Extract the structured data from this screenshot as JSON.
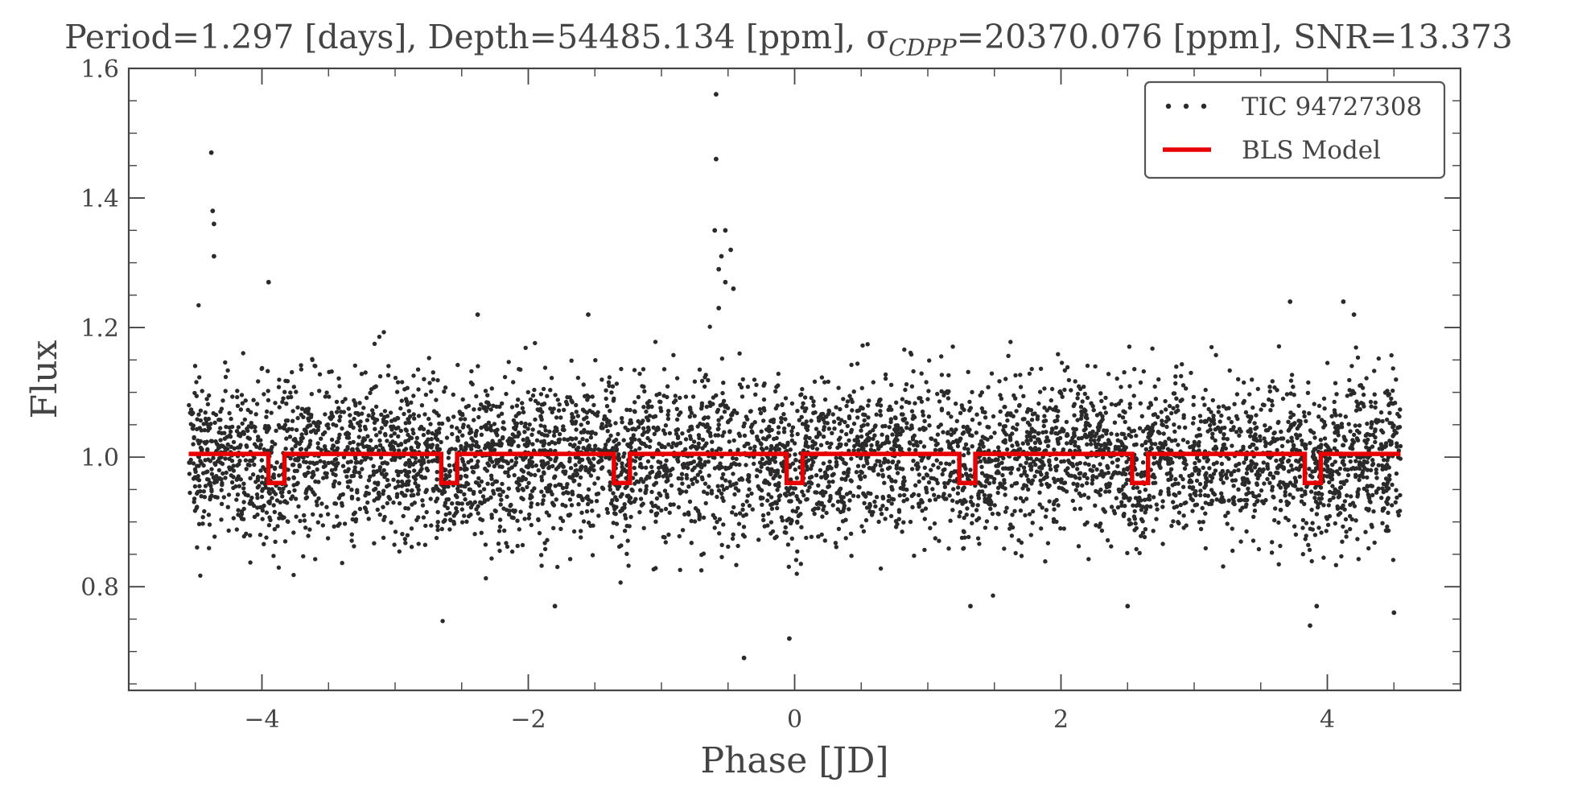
{
  "chart_data": {
    "type": "scatter",
    "title": "Period=1.297 [days],   Depth=54485.134 [ppm],   σ",
    "title_subscript": "CDPP",
    "title_rest": "=20370.076 [ppm],   SNR=13.373",
    "xlabel": "Phase [JD]",
    "ylabel": "Flux",
    "xlim": [
      -5.0,
      5.0
    ],
    "ylim": [
      0.64,
      1.6
    ],
    "x_ticks": [
      -4,
      -2,
      0,
      2,
      4
    ],
    "x_tick_labels": [
      "−4",
      "−2",
      "0",
      "2",
      "4"
    ],
    "y_ticks": [
      0.8,
      1.0,
      1.2,
      1.4,
      1.6
    ],
    "y_tick_labels": [
      "0.8",
      "1.0",
      "1.2",
      "1.4",
      "1.6"
    ],
    "grid": false,
    "legend_position": "top-right",
    "series": [
      {
        "name": "TIC 94727308",
        "kind": "scatter",
        "color": "#2a2a2a",
        "x_range": [
          -4.55,
          4.55
        ],
        "baseline_flux": 1.0,
        "flux_scatter_sigma": 0.06,
        "approx_point_count": 5500,
        "outliers": [
          {
            "x": -4.38,
            "y": 1.47
          },
          {
            "x": -4.37,
            "y": 1.38
          },
          {
            "x": -4.36,
            "y": 1.36
          },
          {
            "x": -4.36,
            "y": 1.31
          },
          {
            "x": -3.95,
            "y": 1.27
          },
          {
            "x": -0.59,
            "y": 1.56
          },
          {
            "x": -0.59,
            "y": 1.46
          },
          {
            "x": -0.6,
            "y": 1.35
          },
          {
            "x": -0.52,
            "y": 1.35
          },
          {
            "x": -0.55,
            "y": 1.31
          },
          {
            "x": -0.57,
            "y": 1.29
          },
          {
            "x": -0.48,
            "y": 1.32
          },
          {
            "x": -0.52,
            "y": 1.27
          },
          {
            "x": -0.46,
            "y": 1.26
          },
          {
            "x": -0.57,
            "y": 1.23
          },
          {
            "x": -0.38,
            "y": 0.69
          },
          {
            "x": -0.04,
            "y": 0.72
          },
          {
            "x": 1.32,
            "y": 0.77
          },
          {
            "x": -1.8,
            "y": 0.77
          },
          {
            "x": 2.5,
            "y": 0.77
          },
          {
            "x": 3.87,
            "y": 0.74
          },
          {
            "x": 4.5,
            "y": 0.76
          },
          {
            "x": 3.92,
            "y": 0.77
          },
          {
            "x": 3.72,
            "y": 1.24
          },
          {
            "x": 4.12,
            "y": 1.24
          },
          {
            "x": 4.2,
            "y": 1.22
          },
          {
            "x": -2.38,
            "y": 1.22
          },
          {
            "x": -1.55,
            "y": 1.22
          }
        ]
      },
      {
        "name": "BLS Model",
        "kind": "step-line",
        "color": "#e80000",
        "x_range": [
          -4.55,
          4.55
        ],
        "baseline_flux": 1.005,
        "transit_flux": 0.96,
        "period_days": 1.297,
        "transit_duration_days": 0.12,
        "transit_centers": [
          -3.891,
          -2.594,
          -1.297,
          0.0,
          1.297,
          2.594,
          3.891
        ]
      }
    ]
  }
}
